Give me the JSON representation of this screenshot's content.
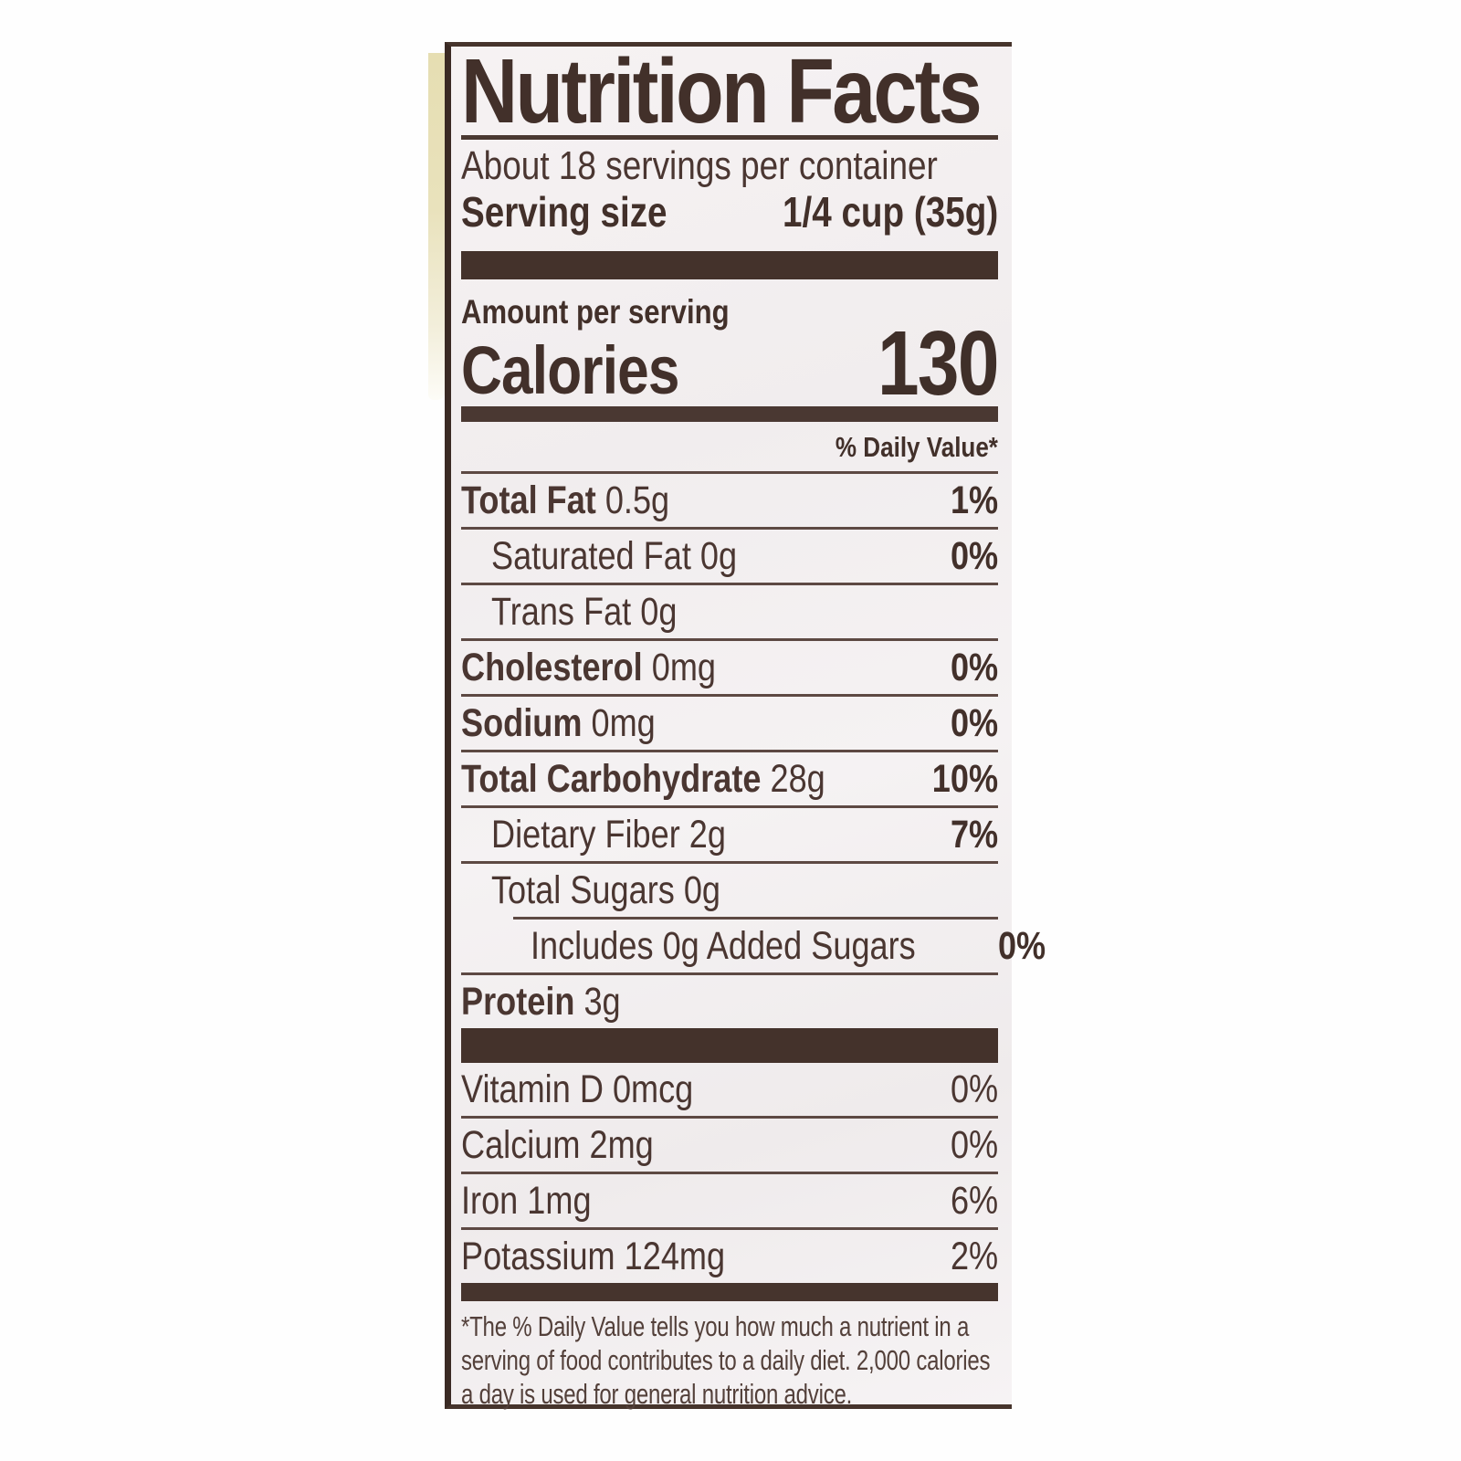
{
  "label": {
    "title": "Nutrition Facts",
    "servings_per_container": "About 18 servings per container",
    "serving_size": {
      "label": "Serving size",
      "value": "1/4 cup (35g)"
    },
    "amount_per_serving": "Amount per serving",
    "calories": {
      "label": "Calories",
      "value": "130"
    },
    "daily_value_header": "% Daily Value*",
    "nutrients": [
      {
        "name": "Total Fat",
        "amount": "0.5g",
        "dv": "1%",
        "bold": true,
        "indent": 0
      },
      {
        "name": "Saturated Fat",
        "amount": "0g",
        "dv": "0%",
        "bold": false,
        "indent": 1
      },
      {
        "name": "Trans Fat",
        "amount": "0g",
        "dv": "",
        "bold": false,
        "indent": 1
      },
      {
        "name": "Cholesterol",
        "amount": "0mg",
        "dv": "0%",
        "bold": true,
        "indent": 0
      },
      {
        "name": "Sodium",
        "amount": "0mg",
        "dv": "0%",
        "bold": true,
        "indent": 0
      },
      {
        "name": "Total Carbohydrate",
        "amount": "28g",
        "dv": "10%",
        "bold": true,
        "indent": 0
      },
      {
        "name": "Dietary Fiber",
        "amount": "2g",
        "dv": "7%",
        "bold": false,
        "indent": 1
      },
      {
        "name": "Total Sugars",
        "amount": "0g",
        "dv": "",
        "bold": false,
        "indent": 1
      },
      {
        "name": "Includes 0g Added Sugars",
        "amount": "",
        "dv": "0%",
        "bold": false,
        "indent": 2,
        "rule_indent": true
      },
      {
        "name": "Protein",
        "amount": "3g",
        "dv": "",
        "bold": true,
        "indent": 0
      }
    ],
    "micronutrients": [
      {
        "name": "Vitamin D",
        "amount": "0mcg",
        "dv": "0%"
      },
      {
        "name": "Calcium",
        "amount": "2mg",
        "dv": "0%"
      },
      {
        "name": "Iron",
        "amount": "1mg",
        "dv": "6%"
      },
      {
        "name": "Potassium",
        "amount": "124mg",
        "dv": "2%"
      }
    ],
    "footnote": "*The % Daily Value tells you how much a nutrient in a serving of food contributes to a daily diet. 2,000 calories a day is used for general nutrition advice."
  },
  "colors": {
    "ink": "#4a3631",
    "bold_ink": "#42302a",
    "bar": "#44322b",
    "hairline": "#5d4943",
    "label_background": "#f3eff0",
    "page_background": "#ffffff",
    "package_edge_cream": "#e8e1b9"
  }
}
